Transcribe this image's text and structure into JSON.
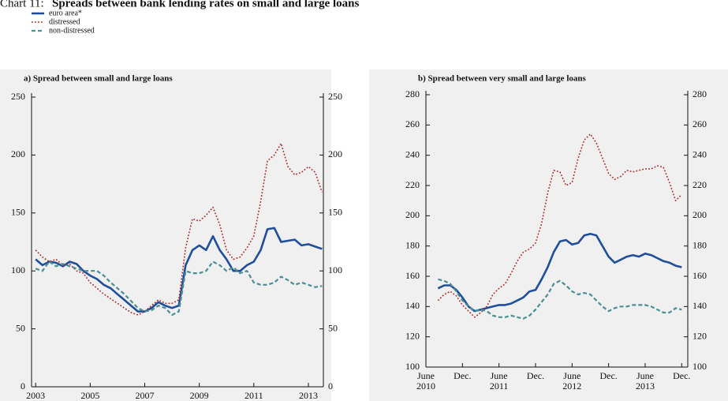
{
  "label": "Chart 11:",
  "title": "Spreads between bank lending rates on small and large loans",
  "chart_data": [
    {
      "type": "line",
      "subtitle": "a) Spread between small and large loans",
      "x": [
        2003,
        2003.25,
        2003.5,
        2003.75,
        2004,
        2004.25,
        2004.5,
        2004.75,
        2005,
        2005.25,
        2005.5,
        2005.75,
        2006,
        2006.25,
        2006.5,
        2006.75,
        2007,
        2007.25,
        2007.5,
        2007.75,
        2008,
        2008.25,
        2008.5,
        2008.75,
        2009,
        2009.25,
        2009.5,
        2009.75,
        2010,
        2010.25,
        2010.5,
        2010.75,
        2011,
        2011.25,
        2011.5,
        2011.75,
        2012,
        2012.25,
        2012.5,
        2012.75,
        2013,
        2013.25,
        2013.5
      ],
      "series": [
        {
          "name": "euro area*",
          "color": "#1f4e9c",
          "style": "solid",
          "values": [
            110,
            105,
            108,
            107,
            104,
            108,
            106,
            100,
            96,
            93,
            88,
            85,
            80,
            75,
            70,
            65,
            65,
            68,
            73,
            70,
            68,
            70,
            105,
            118,
            122,
            118,
            130,
            118,
            110,
            100,
            100,
            105,
            108,
            118,
            136,
            137,
            125,
            126,
            127,
            122,
            123,
            121,
            119
          ]
        },
        {
          "name": "distressed",
          "color": "#b22a2a",
          "style": "dotted",
          "values": [
            118,
            112,
            108,
            110,
            105,
            106,
            100,
            98,
            90,
            85,
            80,
            76,
            72,
            68,
            64,
            62,
            65,
            70,
            75,
            72,
            72,
            75,
            120,
            145,
            143,
            148,
            155,
            140,
            118,
            110,
            112,
            120,
            130,
            160,
            195,
            200,
            210,
            190,
            183,
            185,
            190,
            185,
            168
          ]
        },
        {
          "name": "non-distressed",
          "color": "#4a8f94",
          "style": "dashed",
          "values": [
            102,
            100,
            108,
            104,
            106,
            104,
            102,
            100,
            100,
            100,
            96,
            90,
            85,
            80,
            74,
            68,
            65,
            66,
            70,
            68,
            62,
            65,
            100,
            98,
            98,
            100,
            108,
            105,
            100,
            103,
            98,
            100,
            90,
            88,
            88,
            90,
            95,
            92,
            88,
            90,
            88,
            86,
            87
          ]
        }
      ],
      "xlim": [
        2002.85,
        2013.55
      ],
      "xticks": [
        2003,
        2005,
        2007,
        2009,
        2011,
        2013
      ],
      "ylim": [
        0,
        250
      ],
      "yticks": [
        0,
        50,
        100,
        150,
        200,
        250
      ],
      "y2lim": [
        0,
        250
      ],
      "y2ticks": [
        0,
        50,
        100,
        150,
        200,
        250
      ],
      "grid": false
    },
    {
      "type": "line",
      "subtitle": "b) Spread between very small and large loans",
      "x": [
        "2010-08",
        "2010-09",
        "2010-10",
        "2010-11",
        "2010-12",
        "2011-01",
        "2011-02",
        "2011-03",
        "2011-04",
        "2011-05",
        "2011-06",
        "2011-07",
        "2011-08",
        "2011-09",
        "2011-10",
        "2011-11",
        "2011-12",
        "2012-01",
        "2012-02",
        "2012-03",
        "2012-04",
        "2012-05",
        "2012-06",
        "2012-07",
        "2012-08",
        "2012-09",
        "2012-10",
        "2012-11",
        "2012-12",
        "2013-01",
        "2013-02",
        "2013-03",
        "2013-04",
        "2013-05",
        "2013-06",
        "2013-07",
        "2013-08",
        "2013-09",
        "2013-10",
        "2013-11",
        "2013-12"
      ],
      "series": [
        {
          "values": [
            152,
            154,
            154,
            151,
            146,
            140,
            137,
            138,
            139,
            140,
            141,
            141,
            142,
            144,
            146,
            150,
            151,
            158,
            166,
            176,
            183,
            184,
            181,
            182,
            187,
            188,
            187,
            180,
            173,
            169,
            171,
            173,
            174,
            173,
            175,
            174,
            172,
            170,
            169,
            167,
            166
          ]
        },
        {
          "values": [
            144,
            148,
            150,
            147,
            141,
            137,
            133,
            136,
            140,
            148,
            152,
            155,
            162,
            170,
            176,
            178,
            182,
            195,
            215,
            230,
            229,
            220,
            222,
            238,
            250,
            254,
            248,
            238,
            228,
            224,
            226,
            230,
            229,
            230,
            231,
            231,
            233,
            232,
            222,
            210,
            214
          ]
        },
        {
          "values": [
            158,
            157,
            155,
            150,
            144,
            140,
            137,
            138,
            137,
            134,
            133,
            133,
            134,
            133,
            132,
            134,
            138,
            143,
            148,
            155,
            157,
            154,
            150,
            148,
            149,
            148,
            144,
            140,
            137,
            139,
            140,
            140,
            141,
            141,
            141,
            140,
            138,
            136,
            136,
            139,
            138
          ]
        }
      ],
      "xlim": [
        "2010-06",
        "2014-01"
      ],
      "xticks": [
        {
          "value": "2010-06",
          "label": "June 2010"
        },
        {
          "value": "2010-12",
          "label": "Dec."
        },
        {
          "value": "2011-06",
          "label": "June 2011"
        },
        {
          "value": "2011-12",
          "label": "Dec."
        },
        {
          "value": "2012-06",
          "label": "June 2012"
        },
        {
          "value": "2012-12",
          "label": "Dec."
        },
        {
          "value": "2013-06",
          "label": "June 2013"
        },
        {
          "value": "2013-12",
          "label": "Dec."
        }
      ],
      "ylim": [
        100,
        280
      ],
      "yticks": [
        100,
        120,
        140,
        160,
        180,
        200,
        220,
        240,
        260,
        280
      ],
      "y2lim": [
        100,
        280
      ],
      "y2ticks": [
        100,
        120,
        140,
        160,
        180,
        200,
        220,
        240,
        260,
        280
      ],
      "grid": false
    }
  ]
}
